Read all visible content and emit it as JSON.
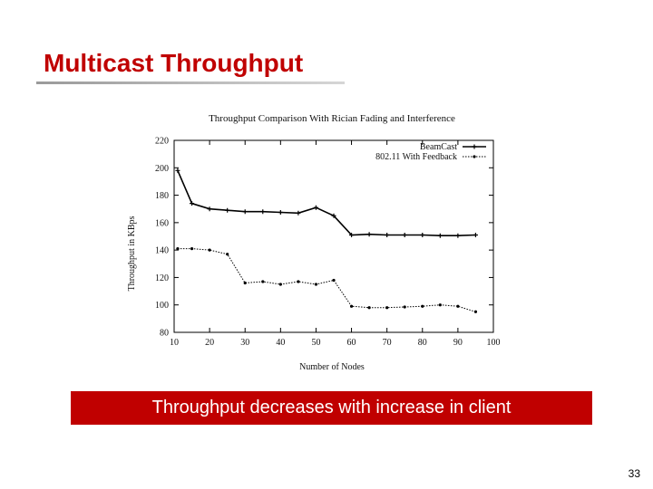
{
  "slide": {
    "title": "Multicast Throughput",
    "banner": "Throughput decreases with increase in client",
    "page_number": "33"
  },
  "colors": {
    "title": "#c00000",
    "banner_bg": "#c00000",
    "banner_text": "#ffffff",
    "series": "#000000"
  },
  "chart_data": {
    "type": "line",
    "title": "Throughput Comparison With Rician Fading and Interference",
    "xlabel": "Number of Nodes",
    "ylabel": "Throughput in KBps",
    "xlim": [
      10,
      100
    ],
    "ylim": [
      80,
      220
    ],
    "xticks": [
      10,
      20,
      30,
      40,
      50,
      60,
      70,
      80,
      90,
      100
    ],
    "yticks": [
      80,
      100,
      120,
      140,
      160,
      180,
      200,
      220
    ],
    "grid": false,
    "legend_position": "top-right",
    "series": [
      {
        "name": "BeamCast",
        "style": "solid",
        "x": [
          11,
          15,
          20,
          25,
          30,
          35,
          40,
          45,
          50,
          55,
          60,
          65,
          70,
          75,
          80,
          85,
          90,
          95
        ],
        "y": [
          198,
          174,
          170,
          169,
          168,
          168,
          167.5,
          167,
          171,
          165,
          151,
          151.5,
          151,
          151,
          151,
          150.5,
          150.5,
          151
        ]
      },
      {
        "name": "802.11 With Feedback",
        "style": "dotted",
        "x": [
          11,
          15,
          20,
          25,
          30,
          35,
          40,
          45,
          50,
          55,
          60,
          65,
          70,
          75,
          80,
          85,
          90,
          95
        ],
        "y": [
          141,
          141,
          140,
          137,
          116,
          117,
          115,
          117,
          115,
          118,
          99,
          98,
          98,
          98.5,
          99,
          100,
          99,
          95
        ]
      }
    ]
  }
}
